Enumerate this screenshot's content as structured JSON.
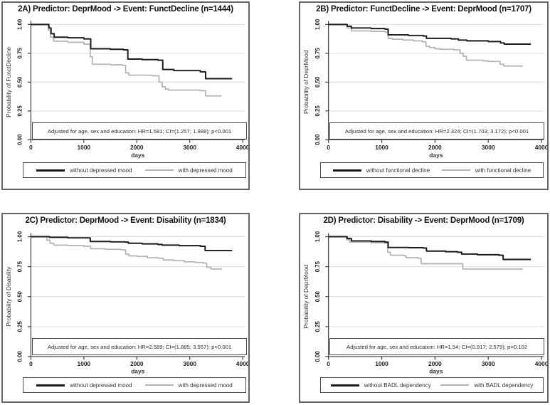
{
  "figure": {
    "description_panels": [
      "2A",
      "2B",
      "2C",
      "2D"
    ],
    "colors": {
      "curve_dark": "#1a1a1a",
      "curve_light": "#b4b4b4",
      "gridline": "#dcdcdc",
      "axis": "#3a3a3a",
      "panel_border": "#666666",
      "box_border": "#4a4a4a"
    }
  },
  "chart_data": [
    {
      "type": "line",
      "subtype": "kaplan-meier-step",
      "panel_label": "2A",
      "title": "2A) Predictor: DeprMood -> Event: FunctDecline (n=1444)",
      "xlabel": "days",
      "ylabel": "Probability of FunctDecline",
      "xlim": [
        0,
        4000
      ],
      "ylim": [
        0,
        1
      ],
      "xticks": [
        0,
        1000,
        2000,
        3000,
        4000
      ],
      "yticks": [
        "0.00",
        "0.25",
        "0.50",
        "0.75",
        "1.00"
      ],
      "grid": "horizontal",
      "legend_position": "bottom",
      "annotation": "Adjusted for age, sex and education: HR=1.581; CI=(1.257; 1.988); p<0.001",
      "series": [
        {
          "name": "without depressed mood",
          "color": "#1a1a1a",
          "step_points": [
            [
              0,
              1.0
            ],
            [
              300,
              1.0
            ],
            [
              340,
              0.97
            ],
            [
              380,
              0.92
            ],
            [
              440,
              0.89
            ],
            [
              700,
              0.885
            ],
            [
              1000,
              0.875
            ],
            [
              1090,
              0.875
            ],
            [
              1130,
              0.79
            ],
            [
              1500,
              0.785
            ],
            [
              1750,
              0.78
            ],
            [
              1830,
              0.7
            ],
            [
              2100,
              0.695
            ],
            [
              2400,
              0.69
            ],
            [
              2490,
              0.61
            ],
            [
              2700,
              0.6
            ],
            [
              3200,
              0.59
            ],
            [
              3300,
              0.53
            ],
            [
              3800,
              0.53
            ]
          ]
        },
        {
          "name": "with depressed mood",
          "color": "#b4b4b4",
          "step_points": [
            [
              0,
              1.0
            ],
            [
              290,
              1.0
            ],
            [
              330,
              0.95
            ],
            [
              370,
              0.89
            ],
            [
              430,
              0.855
            ],
            [
              700,
              0.845
            ],
            [
              1000,
              0.83
            ],
            [
              1090,
              0.83
            ],
            [
              1120,
              0.72
            ],
            [
              1160,
              0.655
            ],
            [
              1500,
              0.65
            ],
            [
              1730,
              0.645
            ],
            [
              1790,
              0.58
            ],
            [
              1850,
              0.56
            ],
            [
              2300,
              0.555
            ],
            [
              2420,
              0.5
            ],
            [
              2480,
              0.46
            ],
            [
              2540,
              0.44
            ],
            [
              2600,
              0.43
            ],
            [
              3200,
              0.425
            ],
            [
              3300,
              0.38
            ],
            [
              3600,
              0.38
            ]
          ]
        }
      ]
    },
    {
      "type": "line",
      "subtype": "kaplan-meier-step",
      "panel_label": "2B",
      "title": "2B) Predictor: FunctDecline -> Event: DeprMood (n=1707)",
      "xlabel": "days",
      "ylabel": "Probability of DeprMood",
      "xlim": [
        0,
        4000
      ],
      "ylim": [
        0,
        1
      ],
      "xticks": [
        0,
        1000,
        2000,
        3000,
        4000
      ],
      "yticks": [
        "0.00",
        "0.25",
        "0.50",
        "0.75",
        "1.00"
      ],
      "grid": "horizontal",
      "legend_position": "bottom",
      "annotation": "Adjusted for age, sex and education: HR=2.324; CI=(1.703; 3.172); p<0.001",
      "series": [
        {
          "name": "without functional decline",
          "color": "#1a1a1a",
          "step_points": [
            [
              0,
              1.0
            ],
            [
              300,
              1.0
            ],
            [
              350,
              0.985
            ],
            [
              430,
              0.97
            ],
            [
              800,
              0.965
            ],
            [
              1060,
              0.96
            ],
            [
              1120,
              0.91
            ],
            [
              1500,
              0.905
            ],
            [
              1780,
              0.9
            ],
            [
              1840,
              0.88
            ],
            [
              2300,
              0.875
            ],
            [
              2440,
              0.865
            ],
            [
              2600,
              0.858
            ],
            [
              3000,
              0.852
            ],
            [
              3230,
              0.84
            ],
            [
              3300,
              0.83
            ],
            [
              3800,
              0.83
            ]
          ]
        },
        {
          "name": "with functional decline",
          "color": "#b4b4b4",
          "step_points": [
            [
              0,
              1.0
            ],
            [
              300,
              1.0
            ],
            [
              350,
              0.97
            ],
            [
              430,
              0.945
            ],
            [
              800,
              0.94
            ],
            [
              1060,
              0.935
            ],
            [
              1120,
              0.88
            ],
            [
              1200,
              0.872
            ],
            [
              1400,
              0.865
            ],
            [
              1600,
              0.858
            ],
            [
              1760,
              0.85
            ],
            [
              1830,
              0.81
            ],
            [
              1900,
              0.8
            ],
            [
              2000,
              0.79
            ],
            [
              2100,
              0.785
            ],
            [
              2350,
              0.78
            ],
            [
              2470,
              0.75
            ],
            [
              2530,
              0.725
            ],
            [
              2590,
              0.69
            ],
            [
              2900,
              0.685
            ],
            [
              3000,
              0.68
            ],
            [
              3220,
              0.655
            ],
            [
              3290,
              0.64
            ],
            [
              3650,
              0.64
            ]
          ]
        }
      ]
    },
    {
      "type": "line",
      "subtype": "kaplan-meier-step",
      "panel_label": "2C",
      "title": "2C) Predictor: DeprMood -> Event: Disability (n=1834)",
      "xlabel": "days",
      "ylabel": "Probability of Disability",
      "xlim": [
        0,
        4000
      ],
      "ylim": [
        0,
        1
      ],
      "xticks": [
        0,
        1000,
        2000,
        3000,
        4000
      ],
      "yticks": [
        "0.00",
        "0.25",
        "0.50",
        "0.75",
        "1.00"
      ],
      "grid": "horizontal",
      "legend_position": "bottom",
      "annotation": "Adjusted for age, sex and education: HR=2.589; CI=(1.885; 3.557); p<0.001",
      "series": [
        {
          "name": "without depressed mood",
          "color": "#1a1a1a",
          "step_points": [
            [
              0,
              1.0
            ],
            [
              280,
              1.0
            ],
            [
              350,
              0.995
            ],
            [
              700,
              0.99
            ],
            [
              1060,
              0.99
            ],
            [
              1120,
              0.96
            ],
            [
              1500,
              0.957
            ],
            [
              1780,
              0.955
            ],
            [
              1840,
              0.945
            ],
            [
              2100,
              0.94
            ],
            [
              2400,
              0.935
            ],
            [
              2480,
              0.93
            ],
            [
              2800,
              0.925
            ],
            [
              3200,
              0.92
            ],
            [
              3290,
              0.885
            ],
            [
              3800,
              0.885
            ]
          ]
        },
        {
          "name": "with depressed mood",
          "color": "#b4b4b4",
          "step_points": [
            [
              0,
              1.0
            ],
            [
              260,
              1.0
            ],
            [
              300,
              0.97
            ],
            [
              360,
              0.945
            ],
            [
              430,
              0.93
            ],
            [
              700,
              0.927
            ],
            [
              1000,
              0.92
            ],
            [
              1080,
              0.92
            ],
            [
              1130,
              0.9
            ],
            [
              1400,
              0.895
            ],
            [
              1700,
              0.89
            ],
            [
              1790,
              0.855
            ],
            [
              1850,
              0.84
            ],
            [
              2000,
              0.835
            ],
            [
              2200,
              0.825
            ],
            [
              2400,
              0.82
            ],
            [
              2500,
              0.805
            ],
            [
              2700,
              0.8
            ],
            [
              2900,
              0.79
            ],
            [
              3100,
              0.785
            ],
            [
              3250,
              0.78
            ],
            [
              3320,
              0.745
            ],
            [
              3400,
              0.73
            ],
            [
              3600,
              0.725
            ]
          ]
        }
      ]
    },
    {
      "type": "line",
      "subtype": "kaplan-meier-step",
      "panel_label": "2D",
      "title": "2D) Predictor: Disability -> Event: DeprMood (n=1709)",
      "xlabel": "days",
      "ylabel": "Probability of DeprMood",
      "xlim": [
        0,
        4000
      ],
      "ylim": [
        0,
        1
      ],
      "xticks": [
        0,
        1000,
        2000,
        3000,
        4000
      ],
      "yticks": [
        "0.00",
        "0.25",
        "0.50",
        "0.75",
        "1.00"
      ],
      "grid": "horizontal",
      "legend_position": "bottom",
      "annotation": "Adjusted for age, sex and education: HR=1.54; CI=(0.917; 2.579); p=0.102",
      "series": [
        {
          "name": "without BADL dependency",
          "color": "#1a1a1a",
          "step_points": [
            [
              0,
              1.0
            ],
            [
              300,
              1.0
            ],
            [
              350,
              0.985
            ],
            [
              430,
              0.965
            ],
            [
              800,
              0.96
            ],
            [
              1060,
              0.955
            ],
            [
              1120,
              0.91
            ],
            [
              1500,
              0.908
            ],
            [
              1780,
              0.905
            ],
            [
              1840,
              0.88
            ],
            [
              2200,
              0.875
            ],
            [
              2420,
              0.87
            ],
            [
              2500,
              0.855
            ],
            [
              2800,
              0.85
            ],
            [
              3200,
              0.845
            ],
            [
              3280,
              0.81
            ],
            [
              3800,
              0.81
            ]
          ]
        },
        {
          "name": "with BADL dependency",
          "color": "#b4b4b4",
          "step_points": [
            [
              0,
              1.0
            ],
            [
              300,
              1.0
            ],
            [
              340,
              0.975
            ],
            [
              400,
              0.955
            ],
            [
              800,
              0.95
            ],
            [
              1060,
              0.945
            ],
            [
              1110,
              0.87
            ],
            [
              1160,
              0.845
            ],
            [
              1420,
              0.84
            ],
            [
              1460,
              0.825
            ],
            [
              1680,
              0.82
            ],
            [
              1740,
              0.775
            ],
            [
              2480,
              0.775
            ],
            [
              2520,
              0.73
            ],
            [
              3650,
              0.73
            ]
          ]
        }
      ]
    }
  ]
}
